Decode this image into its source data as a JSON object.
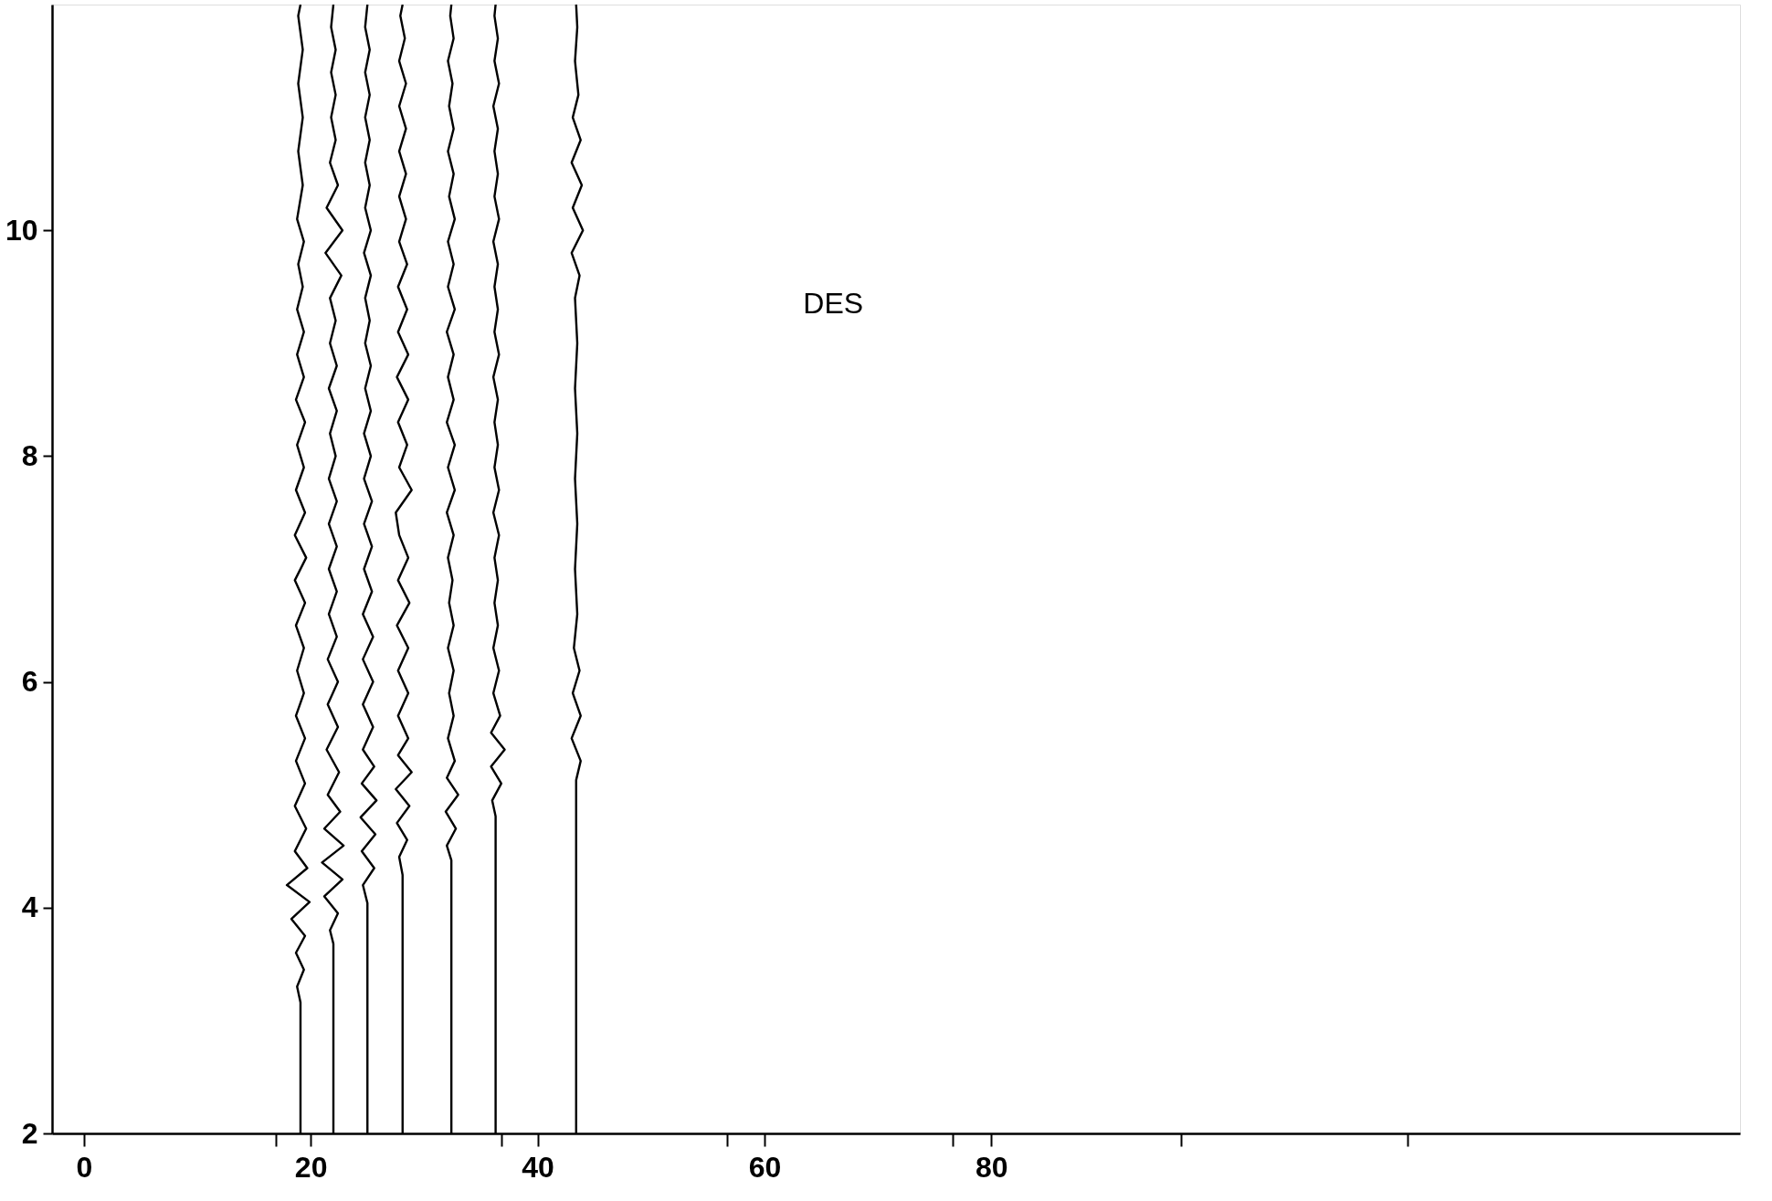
{
  "chart_data": {
    "type": "line",
    "xlim": [
      -2.8,
      146
    ],
    "ylim": [
      2,
      12
    ],
    "xticks": [
      0,
      20,
      40,
      60,
      80,
      {
        "value": 16.9,
        "label": null
      },
      {
        "value": 36.8,
        "label": null
      },
      {
        "value": 56.7,
        "label": null
      },
      {
        "value": 76.6,
        "label": null
      },
      {
        "value": 96.7,
        "label": null
      },
      {
        "value": 116.7,
        "label": null
      }
    ],
    "yticks": [
      2,
      4,
      6,
      8,
      10
    ],
    "annotations": [
      "DES"
    ],
    "series": [
      {
        "color": "#000000",
        "x": [
          19.1,
          19.1,
          18.8,
          19.4,
          18.7,
          19.5,
          18.3,
          19.9,
          17.9,
          19.7,
          18.6,
          19.6,
          18.6,
          19.5,
          18.7,
          19.5,
          18.7,
          19.4,
          18.8,
          19.4,
          18.7,
          19.5,
          18.6,
          19.6,
          18.6,
          19.5,
          18.7,
          19.4,
          18.8,
          19.5,
          18.7,
          19.4,
          18.8,
          19.4,
          18.8,
          19.3,
          18.9,
          19.4,
          18.8,
          19.3,
          18.9,
          19.3,
          18.9,
          19.3,
          18.9,
          19.1
        ],
        "values": [
          2,
          3.16,
          3.3,
          3.45,
          3.6,
          3.75,
          3.9,
          4.05,
          4.2,
          4.35,
          4.5,
          4.7,
          4.9,
          5.1,
          5.3,
          5.5,
          5.7,
          5.9,
          6.1,
          6.3,
          6.5,
          6.7,
          6.9,
          7.1,
          7.3,
          7.5,
          7.7,
          7.9,
          8.1,
          8.3,
          8.5,
          8.7,
          8.9,
          9.1,
          9.3,
          9.5,
          9.7,
          9.9,
          10.1,
          10.4,
          10.7,
          11,
          11.3,
          11.6,
          11.9,
          12
        ]
      },
      {
        "color": "#000000",
        "x": [
          22.0,
          22.0,
          21.7,
          22.4,
          21.2,
          22.8,
          21.0,
          22.9,
          21.2,
          22.6,
          21.5,
          22.5,
          21.4,
          22.4,
          21.5,
          22.4,
          21.5,
          22.3,
          21.6,
          22.3,
          21.6,
          22.3,
          21.6,
          22.3,
          21.6,
          22.2,
          21.7,
          22.3,
          21.6,
          22.3,
          21.7,
          22.2,
          21.7,
          22.7,
          21.3,
          22.8,
          21.4,
          22.4,
          21.7,
          22.2,
          21.8,
          22.2,
          21.8,
          22.2,
          21.8,
          22.0
        ],
        "values": [
          2,
          3.68,
          3.8,
          3.95,
          4.1,
          4.25,
          4.4,
          4.55,
          4.7,
          4.85,
          5.0,
          5.2,
          5.4,
          5.6,
          5.8,
          6.0,
          6.2,
          6.4,
          6.6,
          6.8,
          7.0,
          7.2,
          7.4,
          7.6,
          7.8,
          8.0,
          8.2,
          8.4,
          8.6,
          8.8,
          9.0,
          9.2,
          9.4,
          9.6,
          9.8,
          10.0,
          10.2,
          10.4,
          10.6,
          10.8,
          11.0,
          11.2,
          11.4,
          11.6,
          11.8,
          12
        ]
      },
      {
        "color": "#000000",
        "x": [
          25.0,
          25.0,
          24.6,
          25.6,
          24.5,
          25.7,
          24.4,
          25.8,
          24.5,
          25.6,
          24.6,
          25.5,
          24.6,
          25.5,
          24.6,
          25.5,
          24.6,
          25.4,
          24.7,
          25.4,
          24.7,
          25.4,
          24.7,
          25.3,
          24.7,
          25.3,
          24.8,
          25.3,
          24.8,
          25.2,
          24.8,
          25.3,
          24.7,
          25.3,
          24.8,
          25.2,
          24.8,
          25.2,
          24.8,
          25.2,
          24.8,
          25.2,
          24.8,
          25.0
        ],
        "values": [
          2,
          4.04,
          4.2,
          4.35,
          4.5,
          4.65,
          4.8,
          4.95,
          5.1,
          5.25,
          5.4,
          5.6,
          5.8,
          6.0,
          6.2,
          6.4,
          6.6,
          6.8,
          7.0,
          7.2,
          7.4,
          7.6,
          7.8,
          8.0,
          8.2,
          8.4,
          8.6,
          8.8,
          9.0,
          9.2,
          9.4,
          9.6,
          9.8,
          10.0,
          10.2,
          10.4,
          10.6,
          10.8,
          11.0,
          11.2,
          11.4,
          11.6,
          11.8,
          12
        ]
      },
      {
        "color": "#000000",
        "x": [
          28.1,
          28.1,
          27.8,
          28.5,
          27.6,
          28.7,
          27.5,
          28.9,
          27.7,
          28.6,
          27.7,
          28.6,
          27.7,
          28.6,
          27.6,
          28.7,
          27.7,
          28.6,
          27.8,
          27.5,
          28.9,
          27.8,
          28.5,
          27.7,
          28.6,
          27.6,
          28.6,
          27.7,
          28.5,
          27.7,
          28.5,
          27.8,
          28.4,
          27.8,
          28.4,
          27.8,
          28.4,
          27.8,
          28.4,
          27.8,
          28.3,
          27.9,
          28.1
        ],
        "values": [
          2,
          4.29,
          4.45,
          4.6,
          4.75,
          4.9,
          5.05,
          5.2,
          5.35,
          5.5,
          5.7,
          5.9,
          6.1,
          6.3,
          6.5,
          6.7,
          6.9,
          7.1,
          7.3,
          7.5,
          7.7,
          7.9,
          8.1,
          8.3,
          8.5,
          8.7,
          8.9,
          9.1,
          9.3,
          9.5,
          9.7,
          9.9,
          10.1,
          10.3,
          10.5,
          10.7,
          10.9,
          11.1,
          11.3,
          11.5,
          11.7,
          11.9,
          12
        ]
      },
      {
        "color": "#000000",
        "x": [
          32.4,
          32.4,
          32.0,
          32.8,
          31.9,
          33.0,
          32.0,
          32.7,
          32.1,
          32.6,
          32.2,
          32.6,
          32.1,
          32.6,
          32.2,
          32.5,
          32.1,
          32.6,
          32.0,
          32.7,
          32.1,
          32.7,
          32.0,
          32.6,
          32.1,
          32.6,
          32.0,
          32.7,
          32.1,
          32.6,
          32.1,
          32.7,
          32.2,
          32.6,
          32.1,
          32.6,
          32.2,
          32.5,
          32.1,
          32.6,
          32.3,
          32.4
        ],
        "values": [
          2,
          4.42,
          4.55,
          4.7,
          4.85,
          5.0,
          5.15,
          5.3,
          5.5,
          5.7,
          5.9,
          6.1,
          6.3,
          6.5,
          6.7,
          6.9,
          7.1,
          7.3,
          7.5,
          7.7,
          7.9,
          8.1,
          8.3,
          8.5,
          8.7,
          8.9,
          9.1,
          9.3,
          9.5,
          9.7,
          9.9,
          10.1,
          10.3,
          10.5,
          10.7,
          10.9,
          11.1,
          11.3,
          11.5,
          11.7,
          11.9,
          12
        ]
      },
      {
        "color": "#000000",
        "x": [
          36.3,
          36.3,
          36.0,
          36.8,
          35.9,
          37.1,
          35.9,
          36.7,
          36.1,
          36.6,
          36.1,
          36.5,
          36.2,
          36.5,
          36.2,
          36.6,
          36.1,
          36.6,
          36.2,
          36.5,
          36.2,
          36.5,
          36.1,
          36.6,
          36.2,
          36.5,
          36.2,
          36.5,
          36.1,
          36.6,
          36.2,
          36.5,
          36.2,
          36.5,
          36.1,
          36.6,
          36.2,
          36.5,
          36.2,
          36.3
        ],
        "values": [
          2,
          4.81,
          4.95,
          5.1,
          5.25,
          5.4,
          5.55,
          5.7,
          5.9,
          6.1,
          6.3,
          6.5,
          6.7,
          6.9,
          7.1,
          7.3,
          7.5,
          7.7,
          7.9,
          8.1,
          8.3,
          8.5,
          8.7,
          8.9,
          9.1,
          9.3,
          9.5,
          9.7,
          9.9,
          10.1,
          10.3,
          10.5,
          10.7,
          10.9,
          11.1,
          11.3,
          11.5,
          11.7,
          11.9,
          12
        ]
      },
      {
        "color": "#000000",
        "x": [
          43.4,
          43.4,
          43.8,
          43.0,
          43.8,
          43.1,
          43.7,
          43.2,
          43.5,
          43.3,
          43.5,
          43.3,
          43.5,
          43.3,
          43.5,
          43.3,
          43.7,
          43.0,
          44.0,
          43.1,
          43.9,
          43.0,
          43.8,
          43.1,
          43.6,
          43.3,
          43.5,
          43.4
        ],
        "values": [
          2,
          5.13,
          5.3,
          5.5,
          5.7,
          5.9,
          6.1,
          6.3,
          6.6,
          7.0,
          7.4,
          7.8,
          8.2,
          8.6,
          9.0,
          9.4,
          9.6,
          9.8,
          10.0,
          10.2,
          10.4,
          10.6,
          10.8,
          11.0,
          11.2,
          11.5,
          11.8,
          12
        ]
      }
    ]
  }
}
